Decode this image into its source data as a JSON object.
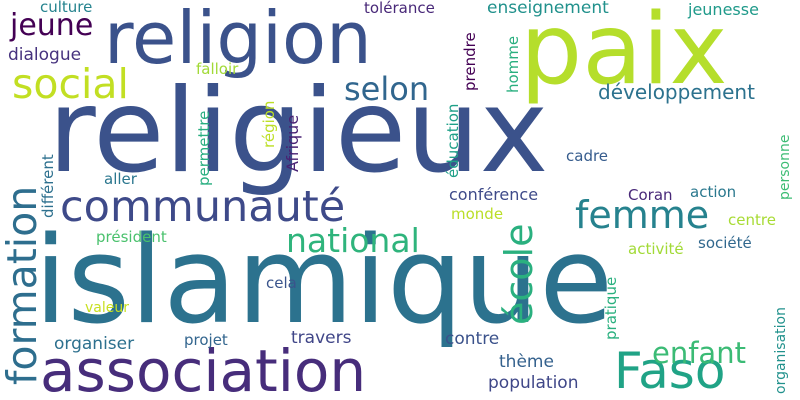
{
  "colors": {
    "background": "#ffffff",
    "palette": [
      "#440154",
      "#414487",
      "#2a788e",
      "#22a884",
      "#7ad151",
      "#bddf26",
      "#fde725"
    ]
  },
  "words": [
    {
      "text": "religieux",
      "color": "#3b528b"
    },
    {
      "text": "islamique",
      "color": "#2c728e"
    },
    {
      "text": "paix",
      "color": "#b5de2b"
    },
    {
      "text": "religion",
      "color": "#3b528b"
    },
    {
      "text": "association",
      "color": "#472d7b"
    },
    {
      "text": "communauté",
      "color": "#3e4a89"
    },
    {
      "text": "formation",
      "color": "#2e6e8e"
    },
    {
      "text": "femme",
      "color": "#26828e"
    },
    {
      "text": "social",
      "color": "#c2df23"
    },
    {
      "text": "national",
      "color": "#2fb47c"
    },
    {
      "text": "école",
      "color": "#2ab07f"
    },
    {
      "text": "Faso",
      "color": "#20a386"
    },
    {
      "text": "enfant",
      "color": "#3bbb75"
    },
    {
      "text": "selon",
      "color": "#31668e"
    },
    {
      "text": "jeune",
      "color": "#440154"
    },
    {
      "text": "développement",
      "color": "#2c728e"
    },
    {
      "text": "dialogue",
      "color": "#46327e"
    },
    {
      "text": "culture",
      "color": "#25838e"
    },
    {
      "text": "tolérance",
      "color": "#482878"
    },
    {
      "text": "enseignement",
      "color": "#21918c"
    },
    {
      "text": "jeunesse",
      "color": "#1f9a8a"
    },
    {
      "text": "prendre",
      "color": "#440154"
    },
    {
      "text": "homme",
      "color": "#29af7f"
    },
    {
      "text": "falloir",
      "color": "#a2da37"
    },
    {
      "text": "éducation",
      "color": "#1fa088"
    },
    {
      "text": "Afrique",
      "color": "#482173"
    },
    {
      "text": "région",
      "color": "#bddf26"
    },
    {
      "text": "permettre",
      "color": "#28ae80"
    },
    {
      "text": "différent",
      "color": "#2d708e"
    },
    {
      "text": "aller",
      "color": "#2a768e"
    },
    {
      "text": "cadre",
      "color": "#365c8d"
    },
    {
      "text": "conférence",
      "color": "#3e4a89"
    },
    {
      "text": "Coran",
      "color": "#482878"
    },
    {
      "text": "action",
      "color": "#2a788e"
    },
    {
      "text": "personne",
      "color": "#3dbc74"
    },
    {
      "text": "monde",
      "color": "#bade28"
    },
    {
      "text": "centre",
      "color": "#a8db34"
    },
    {
      "text": "président",
      "color": "#4ac16d"
    },
    {
      "text": "activité",
      "color": "#a2da37"
    },
    {
      "text": "société",
      "color": "#31688e"
    },
    {
      "text": "cela",
      "color": "#3a548c"
    },
    {
      "text": "valeur",
      "color": "#c8e020"
    },
    {
      "text": "pratique",
      "color": "#2ab07f"
    },
    {
      "text": "organisation",
      "color": "#21918c"
    },
    {
      "text": "organiser",
      "color": "#2d708e"
    },
    {
      "text": "projet",
      "color": "#32658e"
    },
    {
      "text": "travers",
      "color": "#404688"
    },
    {
      "text": "contre",
      "color": "#3b528b"
    },
    {
      "text": "thème",
      "color": "#34618d"
    },
    {
      "text": "population",
      "color": "#3f4788"
    }
  ]
}
